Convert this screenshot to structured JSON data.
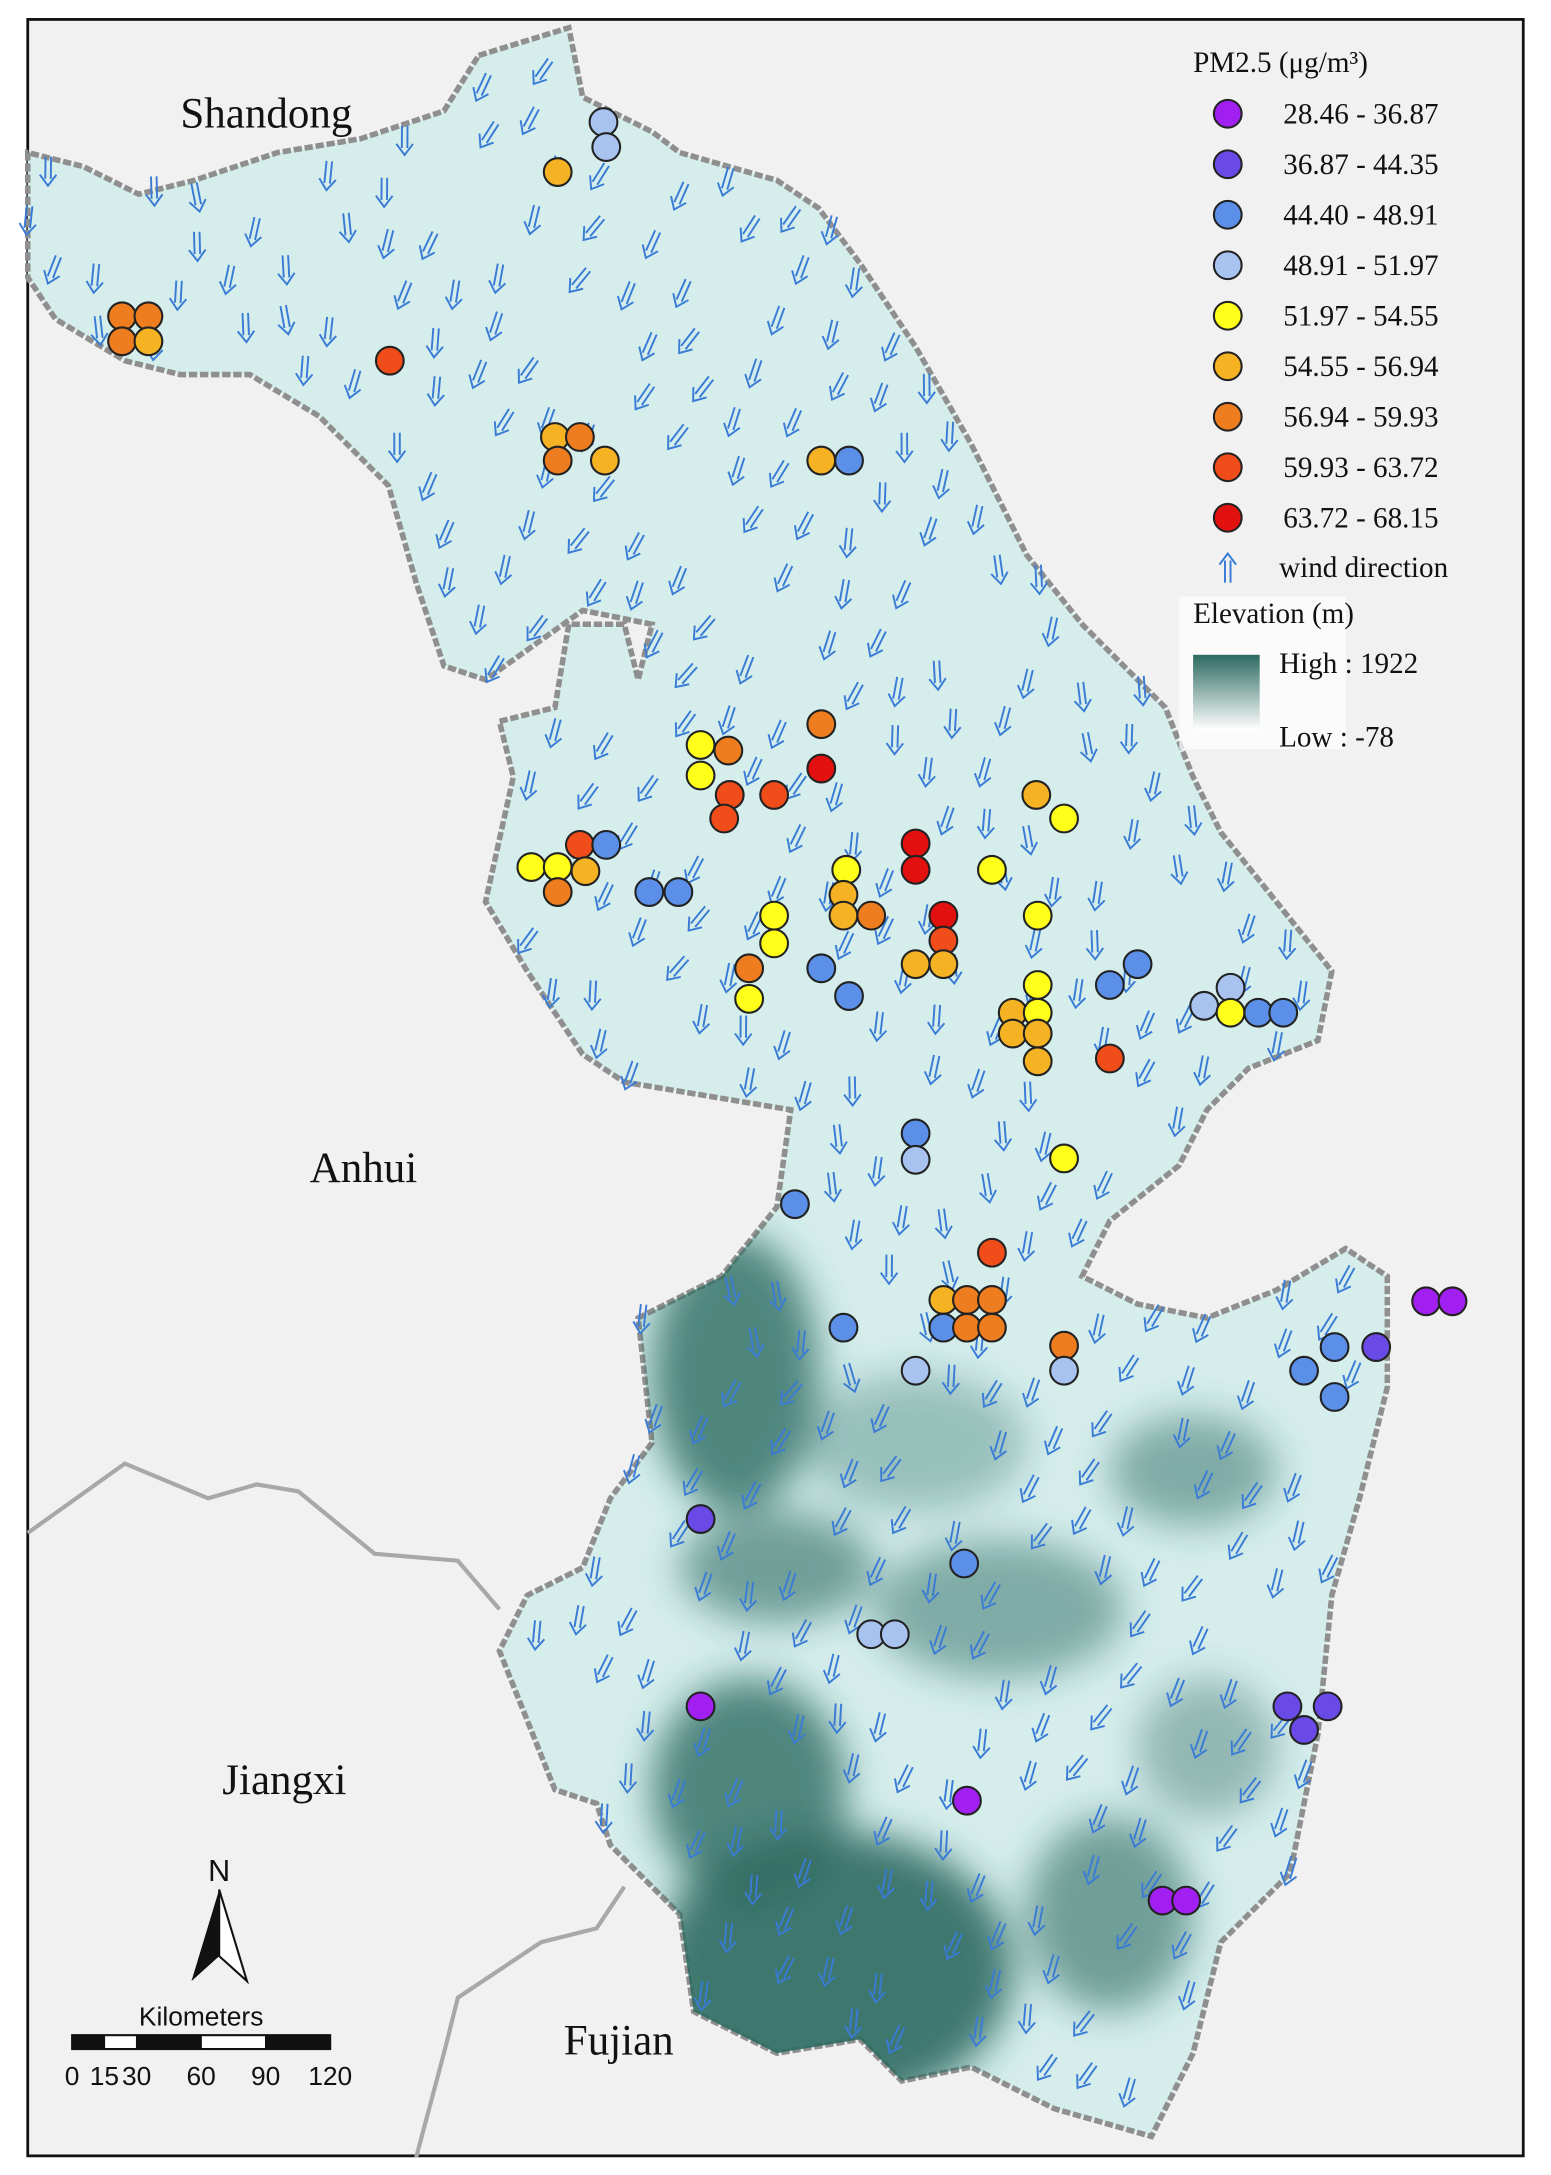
{
  "provinces": [
    "Shandong",
    "Anhui",
    "Jiangxi",
    "Fujian"
  ],
  "legend": {
    "title": "PM2.5 (μg/m³)",
    "classes": [
      {
        "label": "28.46 - 36.87",
        "color": "#a11ff0"
      },
      {
        "label": "36.87 - 44.35",
        "color": "#6a4ae6"
      },
      {
        "label": "44.40 - 48.91",
        "color": "#5b8fe8"
      },
      {
        "label": "48.91 - 51.97",
        "color": "#a9c3f0"
      },
      {
        "label": "51.97 - 54.55",
        "color": "#ffff1a"
      },
      {
        "label": "54.55 - 56.94",
        "color": "#f5b324"
      },
      {
        "label": "56.94 - 59.93",
        "color": "#ee7d1f"
      },
      {
        "label": "59.93 - 63.72",
        "color": "#f04d1a"
      },
      {
        "label": "63.72 - 68.15",
        "color": "#e31010"
      }
    ],
    "wind_label": "wind direction"
  },
  "elevation_legend": {
    "title": "Elevation (m)",
    "high": "High : 1922",
    "low": "Low : -78"
  },
  "north_arrow": "N",
  "scale_bar": {
    "title": "Kilometers",
    "ticks": [
      0,
      15,
      30,
      60,
      90,
      120
    ]
  }
}
